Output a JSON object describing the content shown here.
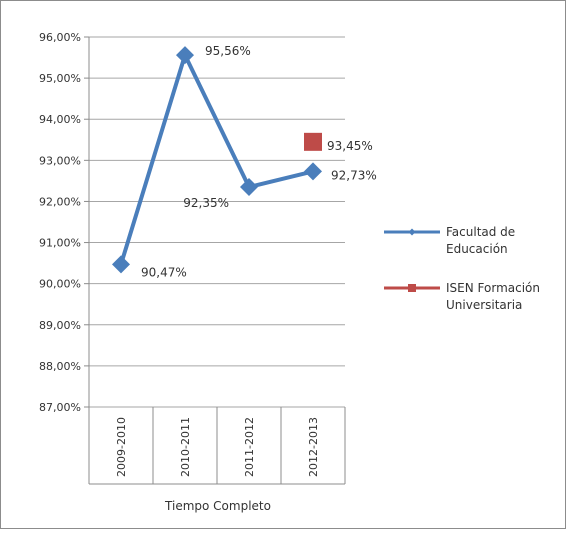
{
  "chart_data": {
    "type": "line",
    "title": "",
    "xlabel": "Tiempo Completo",
    "ylabel": "",
    "categories": [
      "2009-2010",
      "2010-2011",
      "2011-2012",
      "2012-2013"
    ],
    "ylim": [
      87,
      96
    ],
    "yticks": [
      87,
      88,
      89,
      90,
      91,
      92,
      93,
      94,
      95,
      96
    ],
    "ytick_labels": [
      "87,00%",
      "88,00%",
      "89,00%",
      "90,00%",
      "91,00%",
      "92,00%",
      "93,00%",
      "94,00%",
      "95,00%",
      "96,00%"
    ],
    "grid": true,
    "legend_position": "right",
    "series": [
      {
        "name_line1": "Facultad de",
        "name_line2": "Educación",
        "color": "#4a7ebb",
        "marker": "diamond",
        "values": [
          90.47,
          95.56,
          92.35,
          92.73
        ],
        "labels": [
          "90,47%",
          "95,56%",
          "92,35%",
          "92,73%"
        ]
      },
      {
        "name_line1": "ISEN Formación",
        "name_line2": "Universitaria",
        "color": "#be4b48",
        "marker": "square",
        "values": [
          null,
          null,
          null,
          93.45
        ],
        "labels": [
          "",
          "",
          "",
          "93,45%"
        ]
      }
    ]
  }
}
